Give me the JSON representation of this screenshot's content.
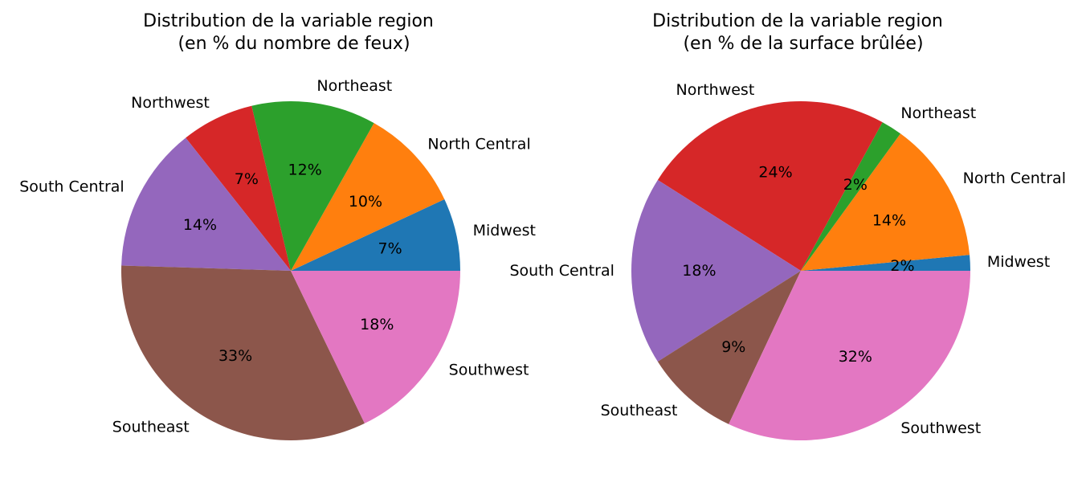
{
  "chart_data": [
    {
      "type": "pie",
      "title_lines": [
        "Distribution de la variable region",
        "(en % du nombre de feux)"
      ],
      "categories": [
        "Midwest",
        "North Central",
        "Northeast",
        "Northwest",
        "South Central",
        "Southeast",
        "Southwest"
      ],
      "values": [
        7,
        10,
        12,
        7,
        14,
        33,
        18
      ],
      "labels": [
        "7%",
        "10%",
        "12%",
        "7%",
        "14%",
        "33%",
        "18%"
      ],
      "colors": [
        "#1f77b4",
        "#ff7f0e",
        "#2ca02c",
        "#d62728",
        "#9467bd",
        "#8c564b",
        "#e377c2"
      ],
      "start_angle": 0,
      "direction": "counterclockwise",
      "legend": "none"
    },
    {
      "type": "pie",
      "title_lines": [
        "Distribution de la variable region",
        "(en % de la surface brûlée)"
      ],
      "categories": [
        "Midwest",
        "North Central",
        "Northeast",
        "Northwest",
        "South Central",
        "Southeast",
        "Southwest"
      ],
      "values": [
        1.5,
        13.5,
        2,
        24,
        18,
        9,
        32
      ],
      "labels": [
        "2%",
        "14%",
        "2%",
        "24%",
        "18%",
        "9%",
        "32%"
      ],
      "colors": [
        "#1f77b4",
        "#ff7f0e",
        "#2ca02c",
        "#d62728",
        "#9467bd",
        "#8c564b",
        "#e377c2"
      ],
      "start_angle": 0,
      "direction": "counterclockwise",
      "legend": "none"
    }
  ]
}
